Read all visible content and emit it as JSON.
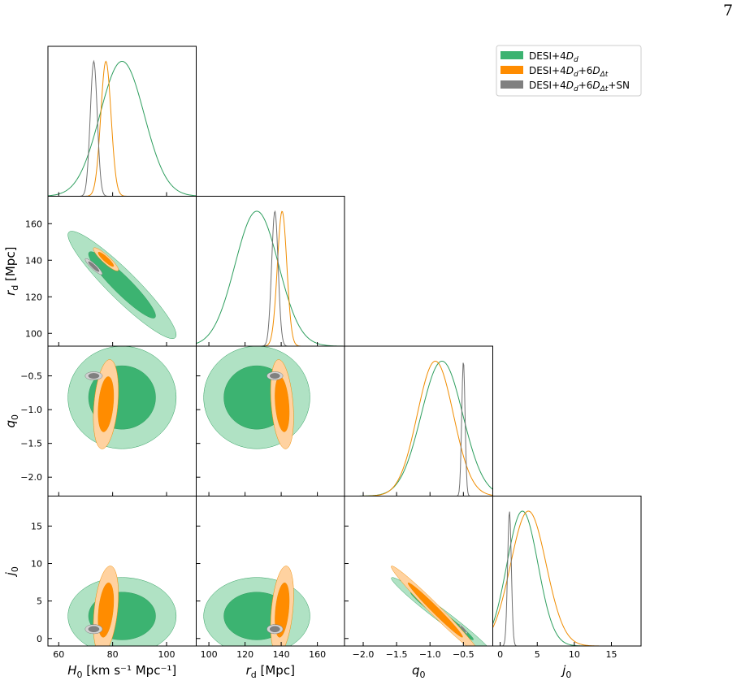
{
  "page_number": "7",
  "chart_data": {
    "type": "corner",
    "parameters": [
      {
        "key": "H0",
        "label": "H0",
        "unit": "[km s⁻¹ Mpc⁻¹]",
        "range": [
          56,
          111
        ],
        "ticks": [
          60,
          80,
          100
        ],
        "tick_labels": [
          "60",
          "80",
          "100"
        ]
      },
      {
        "key": "rd",
        "label": "rd",
        "unit": "[Mpc]",
        "range": [
          93,
          175
        ],
        "ticks": [
          100,
          120,
          140,
          160
        ],
        "tick_labels": [
          "100",
          "120",
          "140",
          "160"
        ]
      },
      {
        "key": "q0",
        "label": "q0",
        "unit": "",
        "range": [
          -2.28,
          -0.06
        ],
        "ticks": [
          -2.0,
          -1.5,
          -1.0,
          -0.5
        ],
        "tick_labels": [
          "−2.0",
          "−1.5",
          "−1.0",
          "−0.5"
        ]
      },
      {
        "key": "j0",
        "label": "j0",
        "unit": "",
        "range": [
          -1,
          19
        ],
        "ticks": [
          0,
          5,
          10,
          15
        ],
        "tick_labels": [
          "0",
          "5",
          "10",
          "15"
        ]
      }
    ],
    "series": [
      {
        "name": "DESI+4Dd",
        "color_dark": "#3cb371",
        "color_light": "#b0e2c4",
        "line": "#2e9e5e",
        "mean": {
          "H0": 83.5,
          "rd": 126.5,
          "q0": -0.82,
          "j0": 3.0
        },
        "sigma": {
          "H0": 8.2,
          "rd": 12.0,
          "q0": 0.31,
          "j0": 2.1
        }
      },
      {
        "name": "DESI+4Dd+6DΔt",
        "color_dark": "#ff8c00",
        "color_light": "#ffd2a0",
        "line": "#f08c00",
        "mean": {
          "H0": 77.5,
          "rd": 140.5,
          "q0": -0.92,
          "j0": 3.8
        },
        "sigma": {
          "H0": 1.9,
          "rd": 2.6,
          "q0": 0.27,
          "j0": 2.4
        }
      },
      {
        "name": "DESI+4Dd+6DΔt+SN",
        "color_dark": "#808080",
        "color_light": "#d3d3d3",
        "line": "#707070",
        "mean": {
          "H0": 73.0,
          "rd": 136.5,
          "q0": -0.5,
          "j0": 1.25
        },
        "sigma": {
          "H0": 1.3,
          "rd": 1.8,
          "q0": 0.025,
          "j0": 0.25
        }
      }
    ],
    "correlations": [
      {
        "pair": [
          "H0",
          "rd"
        ],
        "rho": [
          -0.93,
          -0.9,
          -0.9
        ]
      },
      {
        "pair": [
          "H0",
          "q0"
        ],
        "rho": [
          0.0,
          0.3,
          0.0
        ]
      },
      {
        "pair": [
          "rd",
          "q0"
        ],
        "rho": [
          0.0,
          -0.3,
          0.0
        ]
      },
      {
        "pair": [
          "H0",
          "j0"
        ],
        "rho": [
          0.0,
          0.35,
          0.0
        ]
      },
      {
        "pair": [
          "rd",
          "j0"
        ],
        "rho": [
          0.0,
          0.35,
          0.0
        ]
      },
      {
        "pair": [
          "q0",
          "j0"
        ],
        "rho": [
          -0.98,
          -0.985,
          -0.95
        ]
      }
    ],
    "legend": {
      "position": "top-right"
    }
  }
}
